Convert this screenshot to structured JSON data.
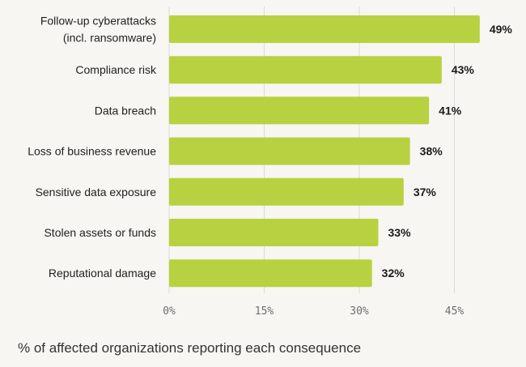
{
  "chart_data": {
    "type": "bar",
    "orientation": "horizontal",
    "categories": [
      [
        "Follow-up cyberattacks",
        "(incl. ransomware)"
      ],
      [
        "Compliance risk"
      ],
      [
        "Data breach"
      ],
      [
        "Loss of business revenue"
      ],
      [
        "Sensitive data exposure"
      ],
      [
        "Stolen assets or funds"
      ],
      [
        "Reputational damage"
      ]
    ],
    "values": [
      49,
      43,
      41,
      38,
      37,
      33,
      32
    ],
    "value_labels": [
      "49%",
      "43%",
      "41%",
      "38%",
      "37%",
      "33%",
      "32%"
    ],
    "x_ticks": [
      0,
      15,
      30,
      45
    ],
    "x_tick_labels": [
      "0%",
      "15%",
      "30%",
      "45%"
    ],
    "xlim": [
      0,
      50
    ],
    "grid": "vertical",
    "xlabel": "% of affected organizations reporting each consequence",
    "ylabel": "",
    "title": "",
    "bar_color": "#b8d140",
    "grid_color": "#dcdcd6",
    "background": "#f7f6f2"
  }
}
